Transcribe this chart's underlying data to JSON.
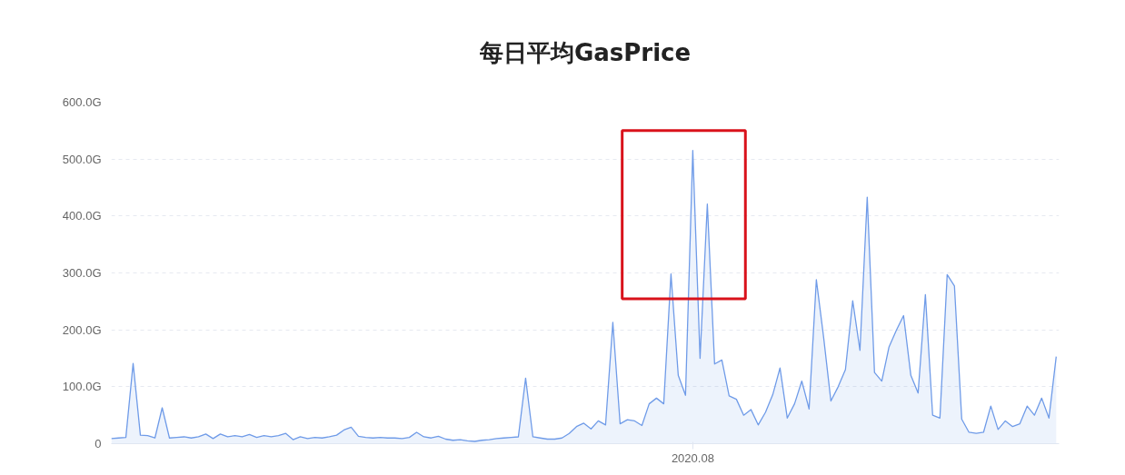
{
  "chart_data": {
    "type": "area",
    "title": "每日平均GasPrice",
    "categories": [
      null,
      null,
      null,
      null,
      null,
      null,
      null,
      null,
      null,
      null,
      null,
      null,
      null,
      null,
      null,
      null,
      null,
      null,
      null,
      null,
      null,
      null,
      null,
      null,
      null,
      null,
      null,
      null,
      null,
      null,
      null,
      null,
      null,
      null,
      null,
      null,
      null,
      null,
      null,
      null,
      null,
      null,
      null,
      null,
      null,
      null,
      null,
      null,
      null,
      null,
      null,
      null,
      null,
      null,
      null,
      null,
      null,
      null,
      null,
      null,
      null,
      null,
      null,
      null,
      null,
      null,
      null,
      null,
      null,
      null,
      null,
      null,
      null,
      null,
      null,
      null,
      null,
      null,
      null,
      null,
      "2020.08",
      null,
      null,
      null,
      null,
      null,
      null,
      null,
      null,
      null,
      null,
      null,
      null,
      null,
      null,
      null,
      null,
      null,
      null,
      null,
      null,
      null,
      null,
      null,
      null,
      null,
      null,
      null,
      null,
      null,
      null,
      null,
      null,
      null,
      null,
      null,
      null,
      null,
      null,
      null,
      null,
      null,
      null,
      null,
      null,
      null,
      null,
      null,
      null,
      null,
      null
    ],
    "series": [
      {
        "color": "#6f9be8",
        "values": [
          9,
          10,
          11,
          141,
          15,
          14,
          10,
          63,
          10,
          11,
          12,
          10,
          12,
          17,
          9,
          17,
          12,
          14,
          12,
          16,
          11,
          14,
          12,
          14,
          18,
          7,
          12,
          9,
          11,
          10,
          12,
          15,
          24,
          29,
          13,
          11,
          10,
          11,
          10,
          10,
          9,
          11,
          20,
          12,
          10,
          13,
          8,
          6,
          7,
          5,
          4,
          6,
          7,
          9,
          10,
          11,
          12,
          115,
          12,
          10,
          8,
          8,
          10,
          18,
          30,
          36,
          26,
          40,
          33,
          213,
          35,
          42,
          40,
          32,
          70,
          80,
          70,
          298,
          120,
          85,
          515,
          150,
          421,
          140,
          147,
          84,
          78,
          50,
          60,
          33,
          55,
          86,
          133,
          45,
          70,
          110,
          61,
          288,
          187,
          75,
          100,
          130,
          251,
          164,
          433,
          125,
          110,
          170,
          199,
          225,
          120,
          89,
          262,
          50,
          45,
          297,
          277,
          43,
          20,
          18,
          20,
          66,
          25,
          40,
          30,
          35,
          66,
          50,
          80,
          45,
          153
        ]
      }
    ],
    "ylim": [
      0,
      600
    ],
    "yticks": [
      {
        "value": 0,
        "label": "0"
      },
      {
        "value": 100,
        "label": "100.0G"
      },
      {
        "value": 200,
        "label": "200.0G"
      },
      {
        "value": 300,
        "label": "300.0G"
      },
      {
        "value": 400,
        "label": "400.0G"
      },
      {
        "value": 500,
        "label": "500.0G"
      },
      {
        "value": 600,
        "label": "600.0G"
      }
    ],
    "grid": "y",
    "marker": "none",
    "line_style": "solid"
  }
}
